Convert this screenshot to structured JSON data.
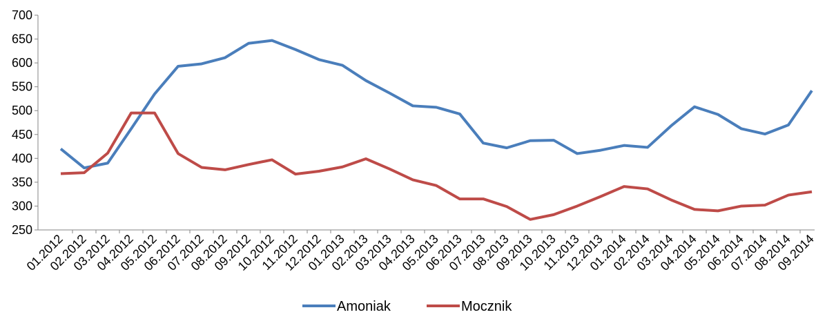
{
  "chart_data": {
    "type": "line",
    "categories": [
      "01.2012",
      "02.2012",
      "03.2012",
      "04.2012",
      "05.2012",
      "06.2012",
      "07.2012",
      "08.2012",
      "09.2012",
      "10.2012",
      "11.2012",
      "12.2012",
      "01.2013",
      "02.2013",
      "03.2013",
      "04.2013",
      "05.2013",
      "06.2013",
      "07.2013",
      "08.2013",
      "09.2013",
      "10.2013",
      "11.2013",
      "12.2013",
      "01.2014",
      "02.2014",
      "03.2014",
      "04.2014",
      "05.2014",
      "06.2014",
      "07.2014",
      "08.2014",
      "09.2014"
    ],
    "series": [
      {
        "name": "Amoniak",
        "color": "#4a7ebb",
        "values": [
          420,
          380,
          390,
          462,
          535,
          593,
          598,
          611,
          641,
          647,
          628,
          607,
          595,
          563,
          537,
          510,
          507,
          493,
          432,
          422,
          437,
          438,
          410,
          417,
          427,
          423,
          468,
          508,
          492,
          462,
          451,
          470,
          542
        ]
      },
      {
        "name": "Mocznik",
        "color": "#be4b48",
        "values": [
          368,
          370,
          411,
          495,
          495,
          410,
          381,
          376,
          387,
          397,
          367,
          373,
          382,
          399,
          378,
          355,
          343,
          315,
          315,
          299,
          272,
          282,
          300,
          320,
          341,
          336,
          313,
          293,
          290,
          300,
          302,
          323,
          330
        ]
      }
    ],
    "ylim": [
      250,
      700
    ],
    "yticks": [
      250,
      300,
      350,
      400,
      450,
      500,
      550,
      600,
      650,
      700
    ],
    "grid": false,
    "legend": "bottom"
  }
}
